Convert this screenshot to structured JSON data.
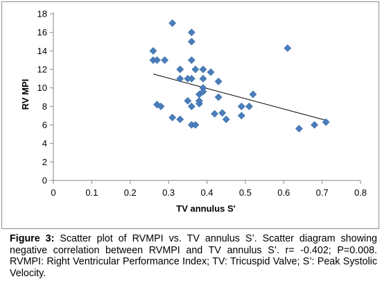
{
  "chart_data": {
    "type": "scatter",
    "xlabel": "TV  annulus S'",
    "ylabel": "RV MPI",
    "xlim": [
      0,
      0.8
    ],
    "ylim": [
      0,
      18
    ],
    "x_ticks": [
      "0",
      "0.1",
      "0.2",
      "0.3",
      "0.4",
      "0.5",
      "0.6",
      "0.7",
      "0.8"
    ],
    "y_ticks": [
      "0",
      "2",
      "4",
      "6",
      "8",
      "10",
      "12",
      "14",
      "16",
      "18"
    ],
    "grid": false,
    "legend": "none",
    "marker": "diamond",
    "marker_color": "#4a7ebb",
    "trendline": {
      "type": "linear",
      "x": [
        0.26,
        0.71
      ],
      "y": [
        11.5,
        6.5
      ],
      "color": "#000000"
    },
    "points": [
      {
        "x": 0.26,
        "y": 14
      },
      {
        "x": 0.26,
        "y": 13
      },
      {
        "x": 0.27,
        "y": 13
      },
      {
        "x": 0.29,
        "y": 13
      },
      {
        "x": 0.27,
        "y": 8.2
      },
      {
        "x": 0.28,
        "y": 8
      },
      {
        "x": 0.31,
        "y": 17
      },
      {
        "x": 0.31,
        "y": 6.8
      },
      {
        "x": 0.33,
        "y": 12
      },
      {
        "x": 0.33,
        "y": 11
      },
      {
        "x": 0.33,
        "y": 6.6
      },
      {
        "x": 0.35,
        "y": 11
      },
      {
        "x": 0.35,
        "y": 8.6
      },
      {
        "x": 0.36,
        "y": 16
      },
      {
        "x": 0.36,
        "y": 15
      },
      {
        "x": 0.36,
        "y": 13
      },
      {
        "x": 0.36,
        "y": 11
      },
      {
        "x": 0.36,
        "y": 8
      },
      {
        "x": 0.36,
        "y": 6
      },
      {
        "x": 0.37,
        "y": 12
      },
      {
        "x": 0.37,
        "y": 6
      },
      {
        "x": 0.38,
        "y": 9.3
      },
      {
        "x": 0.38,
        "y": 8.6
      },
      {
        "x": 0.38,
        "y": 8.3
      },
      {
        "x": 0.39,
        "y": 12
      },
      {
        "x": 0.39,
        "y": 11
      },
      {
        "x": 0.39,
        "y": 10
      },
      {
        "x": 0.39,
        "y": 9.6
      },
      {
        "x": 0.41,
        "y": 11.7
      },
      {
        "x": 0.42,
        "y": 7.2
      },
      {
        "x": 0.43,
        "y": 10.7
      },
      {
        "x": 0.43,
        "y": 9
      },
      {
        "x": 0.44,
        "y": 7.3
      },
      {
        "x": 0.45,
        "y": 6.6
      },
      {
        "x": 0.49,
        "y": 8
      },
      {
        "x": 0.49,
        "y": 7
      },
      {
        "x": 0.51,
        "y": 8
      },
      {
        "x": 0.52,
        "y": 9.3
      },
      {
        "x": 0.61,
        "y": 14.3
      },
      {
        "x": 0.64,
        "y": 5.6
      },
      {
        "x": 0.68,
        "y": 6
      },
      {
        "x": 0.71,
        "y": 6.3
      }
    ]
  },
  "caption": {
    "label": "Figure 3:",
    "text": " Scatter plot of RVMPI vs. TV annulus S’. Scatter diagram showing negative correlation between RVMPI and TV annulus S’. r= -0.402; P=0.008. RVMPI: Right Ventricular Performance Index; TV: Tricuspid Valve; S’: Peak Systolic Velocity."
  }
}
